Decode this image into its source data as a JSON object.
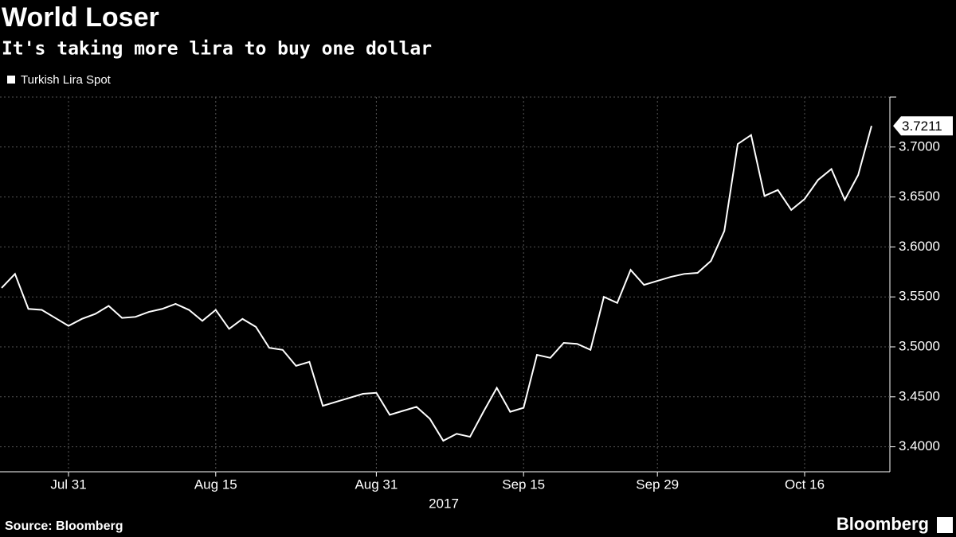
{
  "chart_data": {
    "type": "line",
    "title": "World Loser",
    "subtitle": "It's taking more lira to buy one dollar",
    "xlabel": "2017",
    "source": "Source: Bloomberg",
    "brand": "Bloomberg",
    "categories": [
      null,
      null,
      null,
      null,
      null,
      "Jul 31",
      null,
      null,
      null,
      null,
      null,
      null,
      null,
      null,
      null,
      null,
      "Aug 15",
      null,
      null,
      null,
      null,
      null,
      null,
      null,
      null,
      null,
      null,
      null,
      "Aug 31",
      null,
      null,
      null,
      null,
      null,
      null,
      null,
      null,
      null,
      null,
      "Sep 15",
      null,
      null,
      null,
      null,
      null,
      null,
      null,
      null,
      null,
      "Sep 29",
      null,
      null,
      null,
      null,
      null,
      null,
      null,
      null,
      null,
      null,
      "Oct 16",
      null,
      null,
      null,
      null,
      null
    ],
    "series": [
      {
        "name": "Turkish Lira Spot",
        "color": "#ffffff",
        "values": [
          3.559,
          3.573,
          3.538,
          3.537,
          3.529,
          3.521,
          3.528,
          3.533,
          3.541,
          3.529,
          3.53,
          3.535,
          3.538,
          3.543,
          3.537,
          3.526,
          3.537,
          3.518,
          3.528,
          3.52,
          3.499,
          3.497,
          3.481,
          3.485,
          3.441,
          3.445,
          3.449,
          3.453,
          3.454,
          3.432,
          3.436,
          3.44,
          3.428,
          3.406,
          3.413,
          3.41,
          3.435,
          3.459,
          3.435,
          3.439,
          3.492,
          3.489,
          3.504,
          3.503,
          3.497,
          3.55,
          3.544,
          3.577,
          3.562,
          3.566,
          3.57,
          3.573,
          3.574,
          3.586,
          3.616,
          3.703,
          3.712,
          3.651,
          3.657,
          3.637,
          3.648,
          3.667,
          3.678,
          3.647,
          3.672,
          3.7211
        ]
      }
    ],
    "ylim": [
      3.375,
      3.75
    ],
    "yticks": [
      {
        "value": 3.4,
        "label": "3.4000"
      },
      {
        "value": 3.45,
        "label": "3.4500"
      },
      {
        "value": 3.5,
        "label": "3.5000"
      },
      {
        "value": 3.55,
        "label": "3.5500"
      },
      {
        "value": 3.6,
        "label": "3.6000"
      },
      {
        "value": 3.65,
        "label": "3.6500"
      },
      {
        "value": 3.7,
        "label": "3.7000"
      }
    ],
    "grid": true
  }
}
